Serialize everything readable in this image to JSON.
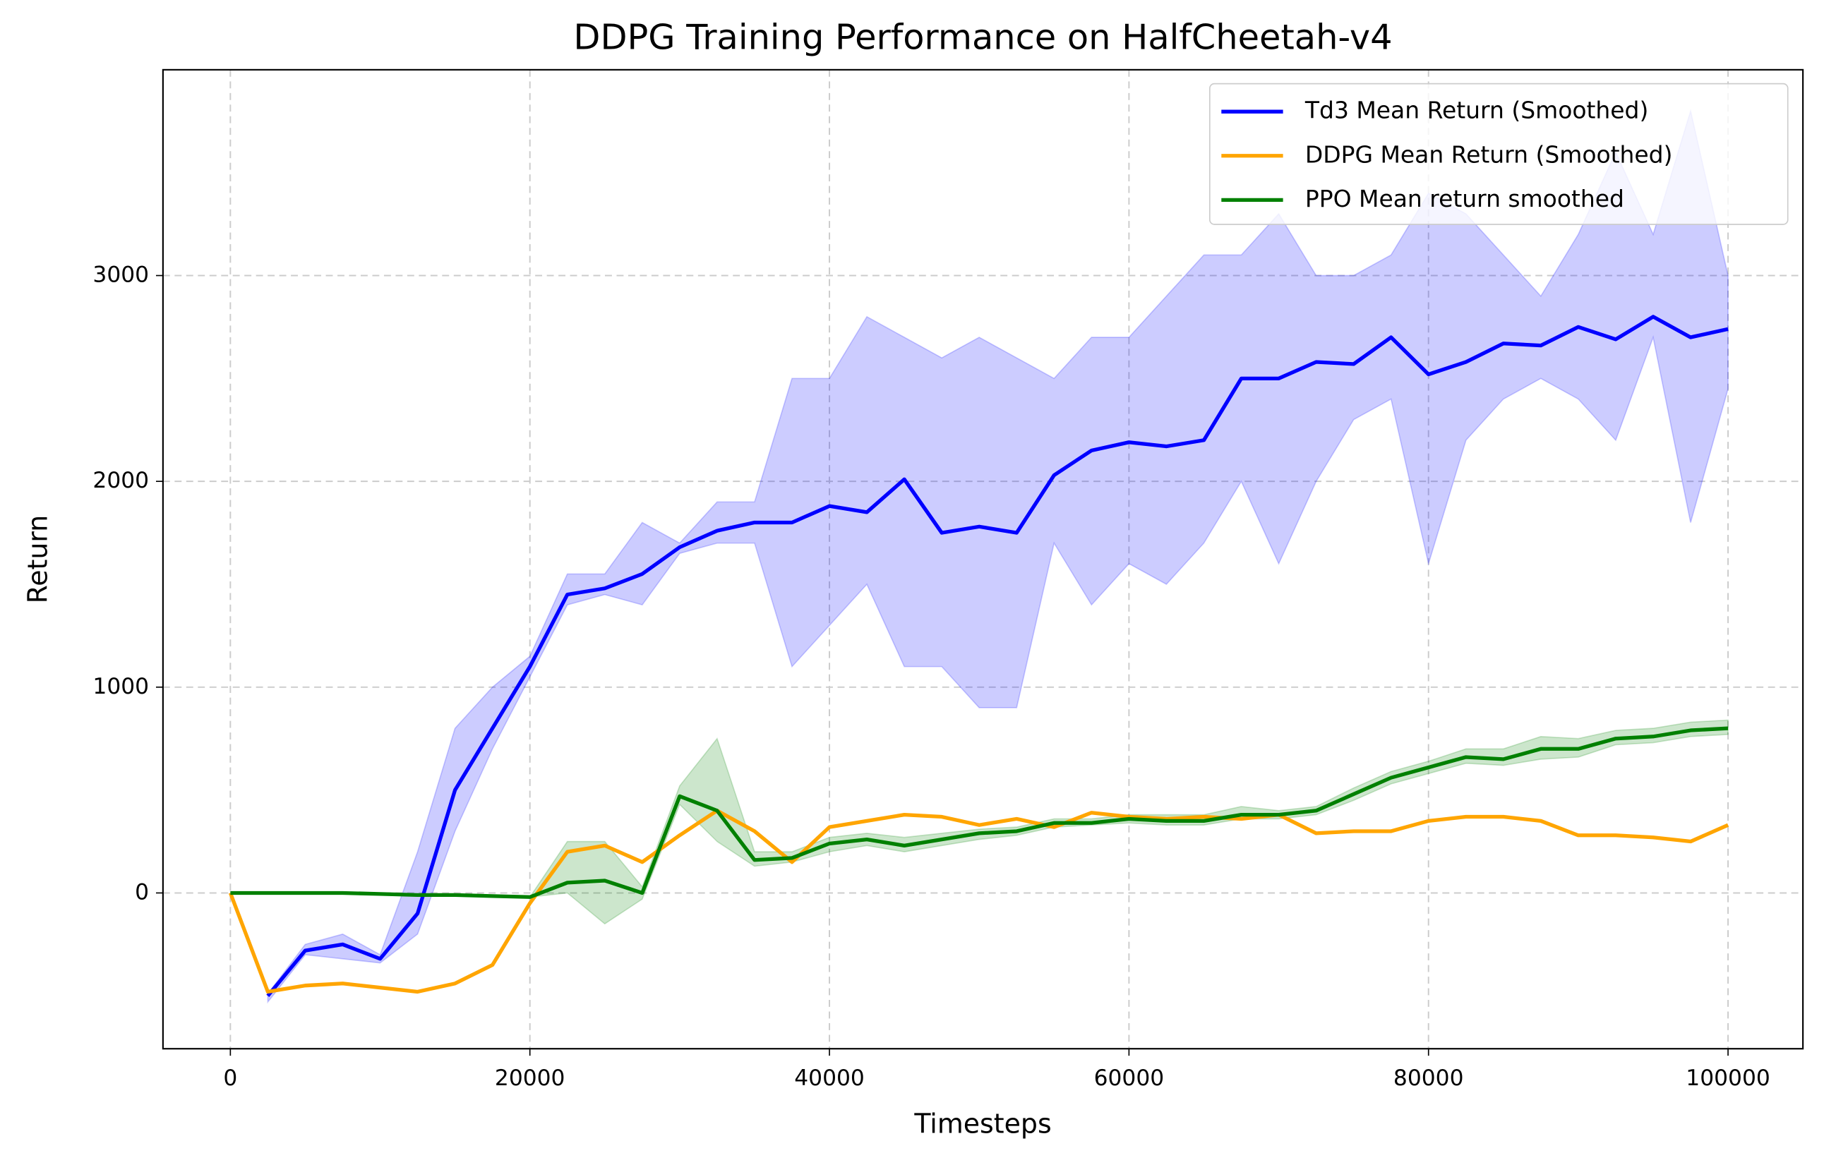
{
  "chart_data": {
    "type": "line",
    "title": "DDPG Training Performance on HalfCheetah-v4",
    "x_label": "Timesteps",
    "y_label": "Return",
    "xlim": [
      -4500,
      105000
    ],
    "ylim": [
      -757,
      4000
    ],
    "xticks": [
      0,
      20000,
      40000,
      60000,
      80000,
      100000
    ],
    "yticks": [
      0,
      1000,
      2000,
      3000
    ],
    "grid": true,
    "legend": "upper right",
    "x": [
      0,
      2500,
      5000,
      7500,
      10000,
      12500,
      15000,
      17500,
      20000,
      22500,
      25000,
      27500,
      30000,
      32500,
      35000,
      37500,
      40000,
      42500,
      45000,
      47500,
      50000,
      52500,
      55000,
      57500,
      60000,
      62500,
      65000,
      67500,
      70000,
      72500,
      75000,
      77500,
      80000,
      82500,
      85000,
      87500,
      90000,
      92500,
      95000,
      97500,
      100000
    ],
    "series": [
      {
        "name": "Td3 Mean Return (Smoothed)",
        "color": "#0000ff",
        "values": [
          null,
          -500,
          -280,
          -250,
          -320,
          -100,
          500,
          800,
          1100,
          1450,
          1480,
          1550,
          1680,
          1760,
          1800,
          1800,
          1880,
          1850,
          2010,
          1750,
          1780,
          1750,
          2030,
          2150,
          2190,
          2170,
          2200,
          2500,
          2500,
          2580,
          2570,
          2700,
          2520,
          2580,
          2670,
          2660,
          2750,
          2690,
          2800,
          2700,
          2740
        ],
        "band": {
          "lower": [
            null,
            -530,
            -300,
            -320,
            -340,
            -200,
            300,
            700,
            1050,
            1400,
            1450,
            1400,
            1650,
            1700,
            1700,
            1100,
            1300,
            1500,
            1100,
            1100,
            900,
            900,
            1700,
            1400,
            1600,
            1500,
            1700,
            2000,
            1600,
            2000,
            2300,
            2400,
            1600,
            2200,
            2400,
            2500,
            2400,
            2200,
            2700,
            1800,
            2450
          ],
          "upper": [
            null,
            -490,
            -250,
            -200,
            -300,
            200,
            800,
            1000,
            1150,
            1550,
            1550,
            1800,
            1700,
            1900,
            1900,
            2500,
            2500,
            2800,
            2700,
            2600,
            2700,
            2600,
            2500,
            2700,
            2700,
            2900,
            3100,
            3100,
            3300,
            3000,
            3000,
            3100,
            3400,
            3300,
            3100,
            2900,
            3200,
            3600,
            3200,
            3800,
            3000
          ]
        }
      },
      {
        "name": "DDPG Mean Return (Smoothed)",
        "color": "#ffa500",
        "values": [
          0,
          -480,
          -450,
          -440,
          -460,
          -480,
          -440,
          -350,
          -50,
          200,
          230,
          150,
          280,
          400,
          300,
          150,
          320,
          350,
          380,
          370,
          330,
          360,
          320,
          390,
          370,
          360,
          370,
          360,
          380,
          290,
          300,
          300,
          350,
          370,
          370,
          350,
          280,
          280,
          270,
          250,
          330
        ]
      },
      {
        "name": "PPO Mean return smoothed",
        "color": "#008000",
        "values": [
          0,
          0,
          0,
          0,
          -5,
          -10,
          -10,
          -15,
          -20,
          50,
          60,
          0,
          470,
          400,
          160,
          170,
          240,
          260,
          230,
          260,
          290,
          300,
          340,
          340,
          360,
          350,
          350,
          380,
          380,
          400,
          480,
          560,
          610,
          660,
          650,
          700,
          700,
          750,
          760,
          790,
          800
        ],
        "band": {
          "lower": [
            0,
            0,
            0,
            0,
            -5,
            -10,
            -10,
            -15,
            -20,
            0,
            -150,
            -30,
            430,
            250,
            130,
            150,
            200,
            230,
            200,
            230,
            260,
            280,
            320,
            330,
            340,
            330,
            330,
            360,
            360,
            380,
            450,
            530,
            580,
            630,
            620,
            650,
            660,
            720,
            730,
            760,
            770
          ],
          "upper": [
            0,
            0,
            0,
            0,
            -5,
            -10,
            -10,
            -15,
            -20,
            250,
            250,
            30,
            520,
            750,
            200,
            200,
            270,
            290,
            270,
            290,
            310,
            320,
            360,
            360,
            380,
            380,
            380,
            420,
            400,
            420,
            510,
            590,
            640,
            700,
            700,
            760,
            750,
            790,
            800,
            830,
            840
          ]
        }
      }
    ]
  }
}
